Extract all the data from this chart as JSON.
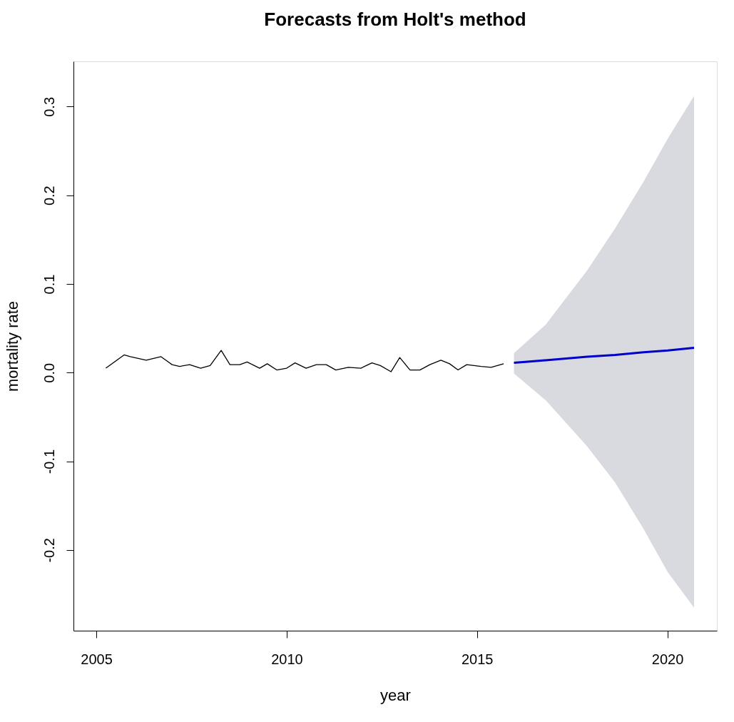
{
  "chart_data": {
    "type": "line",
    "title": "Forecasts from Holt's method",
    "xlabel": "year",
    "ylabel": "mortality rate",
    "xlim": [
      2004.4,
      2021.3
    ],
    "xticks": [
      2005,
      2010,
      2015,
      2020
    ],
    "ylim": [
      -0.291,
      0.351
    ],
    "yticks": [
      -0.2,
      -0.1,
      {
        "value": 0,
        "label": "0.0"
      },
      0.1,
      0.2,
      0.3
    ],
    "marker": "none",
    "line_style": "solid",
    "series": [
      {
        "color": "#000000",
        "x": [
          2005.25,
          2005.73,
          2005.89,
          2006.31,
          2006.7,
          2006.99,
          2007.19,
          2007.45,
          2007.74,
          2007.99,
          2008.28,
          2008.51,
          2008.77,
          2008.96,
          2009.29,
          2009.49,
          2009.74,
          2010.0,
          2010.22,
          2010.51,
          2010.78,
          2011.04,
          2011.29,
          2011.62,
          2011.95,
          2012.24,
          2012.46,
          2012.74,
          2012.97,
          2013.24,
          2013.5,
          2013.76,
          2014.05,
          2014.28,
          2014.5,
          2014.73,
          2015.11,
          2015.37,
          2015.7
        ],
        "values": [
          0.005,
          0.02,
          0.018,
          0.014,
          0.018,
          0.009,
          0.007,
          0.009,
          0.005,
          0.008,
          0.025,
          0.009,
          0.009,
          0.012,
          0.005,
          0.01,
          0.003,
          0.005,
          0.011,
          0.005,
          0.009,
          0.009,
          0.003,
          0.006,
          0.005,
          0.011,
          0.008,
          0.001,
          0.017,
          0.003,
          0.003,
          0.009,
          0.014,
          0.01,
          0.003,
          0.009,
          0.007,
          0.006,
          0.01
        ]
      },
      {
        "color": "#0000cc",
        "x": [
          2015.97,
          2016.8,
          2017.89,
          2018.63,
          2019.37,
          2020.01,
          2020.7
        ],
        "values": [
          0.011,
          0.014,
          0.018,
          0.02,
          0.023,
          0.025,
          0.028
        ],
        "lower": [
          -0.001,
          -0.031,
          -0.083,
          -0.124,
          -0.176,
          -0.225,
          -0.265
        ],
        "upper": [
          0.022,
          0.054,
          0.115,
          0.163,
          0.215,
          0.264,
          0.312
        ]
      }
    ]
  }
}
